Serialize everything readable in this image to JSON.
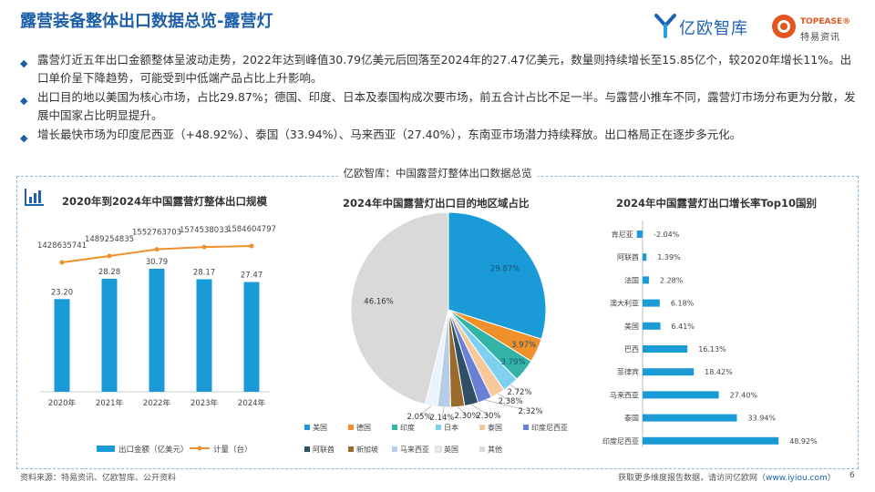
{
  "header": {
    "title": "露营装备整体出口数据总览-露营灯",
    "logo_yiou": "亿欧智库",
    "logo_topease_en": "TOPEASE®",
    "logo_topease_cn": "特易资讯"
  },
  "bullets": [
    "露营灯近五年出口金额整体呈波动走势，2022年达到峰值30.79亿美元后回落至2024年的27.47亿美元，数量则持续增长至15.85亿个，较2020年增长11%。出口单价呈下降趋势，可能受到中低端产品占比上升影响。",
    "出口目的地以美国为核心市场，占比29.87%；德国、印度、日本及泰国构成次要市场，前五合计占比不足一半。与露营小推车不同，露营灯市场分布更为分散，发展中国家占比明显提升。",
    "增长最快市场为印度尼西亚（+48.92%）、泰国（33.94%）、马来西亚（27.40%），东南亚市场潜力持续释放。出口格局正在逐步多元化。"
  ],
  "panel_caption": "亿欧智库：中国露营灯整体出口数据总览",
  "chart_data": [
    {
      "type": "bar",
      "title": "2020年到2024年中国露营灯整体出口规模",
      "categories": [
        "2020年",
        "2021年",
        "2022年",
        "2023年",
        "2024年"
      ],
      "series": [
        {
          "name": "出口金额（亿美元）",
          "kind": "bar",
          "values": [
            23.2,
            28.28,
            30.79,
            28.17,
            27.47
          ],
          "color": "#1a9ad6"
        },
        {
          "name": "计量（台）",
          "kind": "line",
          "values": [
            1428635741,
            1489254835,
            1552763703,
            1574538033,
            1584604797
          ],
          "color": "#f0902a"
        }
      ],
      "value_labels": [
        "23.20",
        "28.28",
        "30.79",
        "28.17",
        "27.47"
      ],
      "count_labels": [
        "1428635741",
        "1489254835",
        "1552763703",
        "1574538033",
        "1584604797"
      ]
    },
    {
      "type": "pie",
      "title": "2024年中国露营灯出口目的地区域占比",
      "labels": [
        "美国",
        "德国",
        "印度",
        "日本",
        "泰国",
        "印度尼西亚",
        "阿联酋",
        "新加坡",
        "马来西亚",
        "英国",
        "其他"
      ],
      "values": [
        29.87,
        3.97,
        3.79,
        2.72,
        2.38,
        2.32,
        2.3,
        2.3,
        2.14,
        2.05,
        46.16
      ],
      "value_labels": [
        "29.87%",
        "3.97%",
        "3.79%",
        "2.72%",
        "2.38%",
        "2.32%",
        "2.30%",
        "2.30%",
        "2.14%",
        "2.05%",
        "46.16%"
      ],
      "colors": [
        "#1a9ad6",
        "#f0902a",
        "#33b3a6",
        "#7fd0ee",
        "#f6c89a",
        "#6a7fd6",
        "#2f4f66",
        "#9a6a2a",
        "#b5cde8",
        "#eaf2fb",
        "#d9d9d9"
      ],
      "legend": "bottom"
    },
    {
      "type": "bar",
      "orientation": "horizontal",
      "title": "2024年中国露营灯出口增长率Top10国别",
      "categories": [
        "肯尼亚",
        "阿联酋",
        "法国",
        "澳大利亚",
        "美国",
        "巴西",
        "菲律宾",
        "马来西亚",
        "泰国",
        "印度尼西亚"
      ],
      "values": [
        -2.04,
        1.39,
        2.28,
        6.18,
        6.41,
        16.13,
        18.42,
        27.4,
        33.94,
        48.92
      ],
      "value_labels": [
        "-2.04%",
        "1.39%",
        "2.28%",
        "6.18%",
        "6.41%",
        "16.13%",
        "18.42%",
        "27.40%",
        "33.94%",
        "48.92%"
      ],
      "color": "#1a9ad6"
    }
  ],
  "footer": {
    "source": "资料来源：特易资讯、亿欧智库、公开资料",
    "more_text": "获取更多维度报告数据，请访问亿欧网（",
    "more_link": "www.iyiou.com",
    "more_end": "）",
    "page": "6"
  }
}
